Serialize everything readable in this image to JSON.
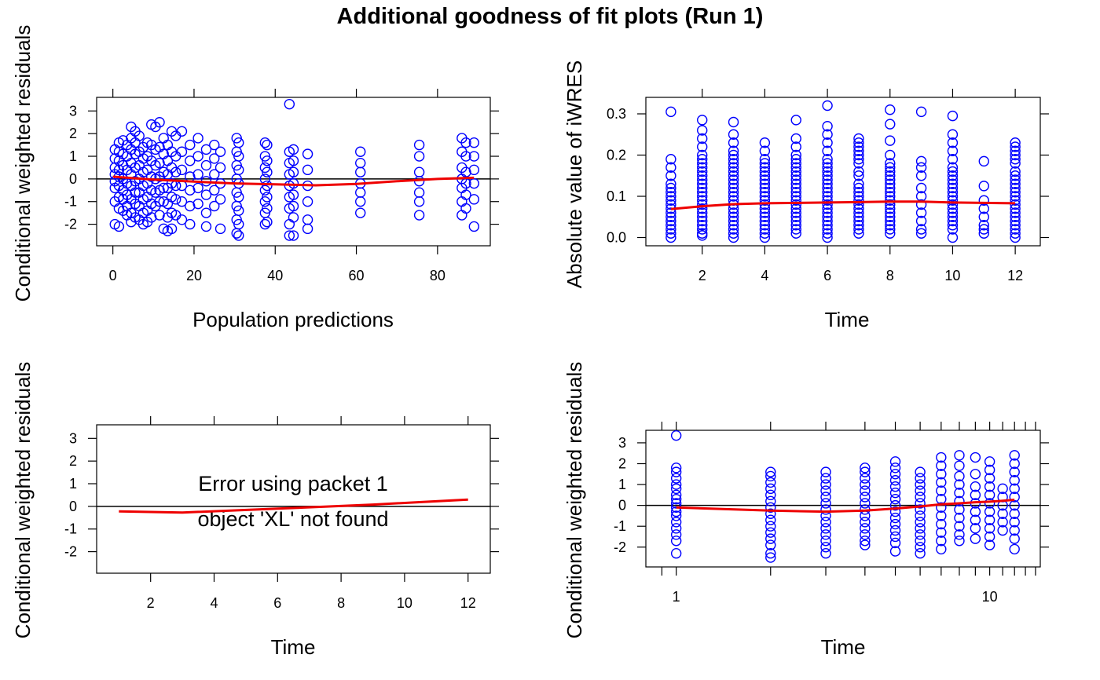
{
  "figure": {
    "title": "Additional goodness of fit plots (Run 1)",
    "colors": {
      "points": "#0000ff",
      "smooth": "#ee0000",
      "reference": "#000000",
      "frame": "#000000",
      "background": "#ffffff"
    }
  },
  "chart_data": [
    {
      "type": "scatter",
      "xlabel": "Population predictions",
      "ylabel": "Conditional weighted residuals",
      "xlim": [
        -4,
        93
      ],
      "ylim": [
        -2.95,
        3.6
      ],
      "xticks": [
        0,
        20,
        40,
        60,
        80
      ],
      "yticks": [
        -2,
        -1,
        0,
        1,
        2,
        3
      ],
      "reference_line_y": 0,
      "x_columns": [
        0.5,
        1.5,
        2.5,
        3.5,
        4.5,
        5.5,
        6.5,
        7.5,
        8.5,
        9.5,
        10.5,
        11.5,
        12.5,
        13.5,
        14.5,
        15.5,
        17,
        19,
        21,
        23,
        25,
        26.5,
        30.5,
        31,
        37.5,
        38,
        43.5,
        44.5,
        48,
        61,
        75.5,
        86,
        87,
        89
      ],
      "column_values": [
        [
          1.3,
          0.9,
          0.5,
          0.2,
          -0.1,
          -0.4,
          -1.0,
          -2.0
        ],
        [
          1.6,
          1.2,
          0.8,
          0.4,
          0.1,
          -0.3,
          -0.8,
          -1.3,
          -2.1
        ],
        [
          1.7,
          1.1,
          0.6,
          0.0,
          -0.5,
          -0.9,
          -1.4
        ],
        [
          1.5,
          1.0,
          0.4,
          -0.2,
          -0.7,
          -1.2,
          -1.6
        ],
        [
          2.3,
          1.8,
          1.3,
          0.7,
          0.2,
          -0.3,
          -0.9,
          -1.5,
          -1.9
        ],
        [
          2.1,
          1.6,
          1.1,
          0.5,
          -0.1,
          -0.6,
          -1.1,
          -1.7
        ],
        [
          1.9,
          1.2,
          0.6,
          0.0,
          -0.6,
          -1.2,
          -1.8
        ],
        [
          1.4,
          0.9,
          0.3,
          -0.3,
          -0.9,
          -1.5,
          -2.0
        ],
        [
          1.6,
          1.0,
          0.4,
          -0.2,
          -0.8,
          -1.4,
          -1.9
        ],
        [
          2.4,
          1.5,
          0.8,
          0.1,
          -0.5,
          -1.1,
          -1.7
        ],
        [
          2.3,
          1.3,
          0.6,
          0.0,
          -0.6,
          -1.2
        ],
        [
          2.5,
          1.4,
          0.7,
          0.1,
          -0.5,
          -1.0,
          -1.6
        ],
        [
          1.8,
          1.1,
          0.3,
          -0.4,
          -1.0,
          -2.2
        ],
        [
          1.5,
          0.8,
          0.2,
          -0.4,
          -1.1,
          -1.7,
          -2.3
        ],
        [
          2.1,
          1.2,
          0.5,
          -0.2,
          -0.8,
          -1.5,
          -2.2
        ],
        [
          1.9,
          1.0,
          0.3,
          -0.3,
          -0.9,
          -1.6
        ],
        [
          2.1,
          1.2,
          0.4,
          -0.3,
          -1.0,
          -1.8
        ],
        [
          1.5,
          0.8,
          0.1,
          -0.5,
          -1.2,
          -2.0
        ],
        [
          1.8,
          1.0,
          0.2,
          -0.4,
          -1.1
        ],
        [
          1.3,
          0.6,
          -0.1,
          -0.7,
          -1.5,
          -2.1
        ],
        [
          1.5,
          0.9,
          0.2,
          -0.5,
          -1.2
        ],
        [
          1.2,
          0.5,
          -0.2,
          -0.9,
          -2.2
        ],
        [
          1.8,
          1.2,
          0.6,
          0.0,
          -0.6,
          -1.2,
          -1.8,
          -2.4
        ],
        [
          1.6,
          1.0,
          0.4,
          -0.2,
          -0.8,
          -1.4,
          -2.0,
          -2.5
        ],
        [
          1.6,
          1.0,
          0.5,
          0.0,
          -0.5,
          -1.0,
          -1.5,
          -2.0
        ],
        [
          1.5,
          0.8,
          0.3,
          -0.3,
          -0.8,
          -1.3,
          -1.9
        ],
        [
          3.3,
          1.2,
          0.7,
          0.2,
          -0.3,
          -0.8,
          -1.3,
          -2.0,
          -2.5
        ],
        [
          1.3,
          0.8,
          0.3,
          -0.2,
          -0.7,
          -1.2,
          -1.7,
          -2.5
        ],
        [
          1.1,
          0.4,
          -0.3,
          -1.0,
          -1.8,
          -2.2
        ],
        [
          1.2,
          0.7,
          0.3,
          -0.2,
          -0.6,
          -1.0,
          -1.5
        ],
        [
          1.5,
          1.0,
          0.3,
          -0.1,
          -0.6,
          -1.0,
          -1.6
        ],
        [
          1.8,
          1.2,
          0.5,
          0.0,
          -0.4,
          -1.0,
          -1.6
        ],
        [
          1.6,
          1.0,
          0.3,
          -0.2,
          -0.7,
          -1.3
        ],
        [
          1.6,
          1.0,
          0.4,
          -0.2,
          -0.9,
          -2.1
        ]
      ],
      "smooth_x": [
        0,
        10,
        20,
        30,
        40,
        50,
        60,
        70,
        80,
        89
      ],
      "smooth_y": [
        0.1,
        -0.03,
        -0.12,
        -0.2,
        -0.24,
        -0.28,
        -0.22,
        -0.1,
        0.0,
        0.05
      ]
    },
    {
      "type": "scatter",
      "xlabel": "Time",
      "ylabel": "Absolute value of iWRES",
      "xlim": [
        0.2,
        12.8
      ],
      "ylim": [
        -0.02,
        0.34
      ],
      "xticks": [
        2,
        4,
        6,
        8,
        10,
        12
      ],
      "yticks": [
        0.0,
        0.1,
        0.2,
        0.3
      ],
      "x_columns": [
        1,
        2,
        3,
        4,
        5,
        6,
        7,
        8,
        9,
        10,
        11,
        12
      ],
      "column_values": [
        [
          0.305,
          0.19,
          0.17,
          0.15,
          0.13,
          0.12,
          0.11,
          0.1,
          0.09,
          0.08,
          0.07,
          0.06,
          0.05,
          0.04,
          0.03,
          0.02,
          0.01,
          0.0
        ],
        [
          0.285,
          0.26,
          0.24,
          0.22,
          0.2,
          0.19,
          0.18,
          0.17,
          0.16,
          0.15,
          0.14,
          0.13,
          0.12,
          0.11,
          0.1,
          0.09,
          0.08,
          0.07,
          0.06,
          0.05,
          0.04,
          0.03,
          0.02,
          0.01,
          0.005
        ],
        [
          0.28,
          0.25,
          0.23,
          0.21,
          0.2,
          0.19,
          0.18,
          0.17,
          0.16,
          0.15,
          0.14,
          0.13,
          0.12,
          0.11,
          0.1,
          0.09,
          0.08,
          0.07,
          0.06,
          0.05,
          0.04,
          0.03,
          0.02,
          0.01,
          0.0
        ],
        [
          0.23,
          0.21,
          0.19,
          0.18,
          0.17,
          0.16,
          0.15,
          0.14,
          0.13,
          0.12,
          0.11,
          0.1,
          0.09,
          0.08,
          0.07,
          0.06,
          0.05,
          0.04,
          0.03,
          0.02,
          0.01,
          0.0
        ],
        [
          0.285,
          0.24,
          0.22,
          0.2,
          0.19,
          0.18,
          0.17,
          0.16,
          0.15,
          0.14,
          0.13,
          0.12,
          0.11,
          0.1,
          0.09,
          0.08,
          0.07,
          0.06,
          0.05,
          0.04,
          0.03,
          0.02,
          0.01
        ],
        [
          0.32,
          0.27,
          0.25,
          0.23,
          0.21,
          0.19,
          0.18,
          0.17,
          0.16,
          0.15,
          0.14,
          0.13,
          0.12,
          0.11,
          0.1,
          0.09,
          0.08,
          0.07,
          0.06,
          0.05,
          0.04,
          0.03,
          0.02,
          0.01,
          0.0
        ],
        [
          0.24,
          0.23,
          0.22,
          0.21,
          0.2,
          0.19,
          0.18,
          0.16,
          0.15,
          0.13,
          0.12,
          0.11,
          0.1,
          0.09,
          0.08,
          0.07,
          0.06,
          0.05,
          0.04,
          0.03,
          0.02,
          0.01
        ],
        [
          0.31,
          0.275,
          0.235,
          0.2,
          0.18,
          0.17,
          0.16,
          0.15,
          0.14,
          0.13,
          0.12,
          0.11,
          0.1,
          0.09,
          0.08,
          0.07,
          0.06,
          0.05,
          0.04,
          0.03,
          0.02,
          0.01
        ],
        [
          0.305,
          0.185,
          0.17,
          0.15,
          0.12,
          0.1,
          0.08,
          0.06,
          0.04,
          0.02,
          0.01
        ],
        [
          0.295,
          0.25,
          0.23,
          0.21,
          0.19,
          0.17,
          0.16,
          0.15,
          0.14,
          0.13,
          0.12,
          0.11,
          0.1,
          0.09,
          0.08,
          0.07,
          0.06,
          0.05,
          0.04,
          0.03,
          0.02,
          0.0
        ],
        [
          0.185,
          0.125,
          0.09,
          0.07,
          0.05,
          0.03,
          0.02,
          0.01
        ],
        [
          0.23,
          0.22,
          0.21,
          0.2,
          0.19,
          0.18,
          0.16,
          0.15,
          0.14,
          0.13,
          0.12,
          0.11,
          0.1,
          0.09,
          0.08,
          0.07,
          0.06,
          0.05,
          0.04,
          0.03,
          0.02,
          0.01,
          0.0
        ]
      ],
      "smooth_x": [
        1,
        2,
        3,
        4,
        5,
        6,
        7,
        8,
        9,
        10,
        11,
        12
      ],
      "smooth_y": [
        0.069,
        0.076,
        0.081,
        0.083,
        0.084,
        0.085,
        0.086,
        0.087,
        0.087,
        0.085,
        0.084,
        0.083
      ]
    },
    {
      "type": "line",
      "xlabel": "Time",
      "ylabel": "Conditional weighted residuals",
      "xlim": [
        0.3,
        12.7
      ],
      "ylim": [
        -2.95,
        3.6
      ],
      "xticks": [
        2,
        4,
        6,
        8,
        10,
        12
      ],
      "yticks": [
        -2,
        -1,
        0,
        1,
        2,
        3
      ],
      "reference_line_y": 0,
      "error_lines": [
        "Error using packet 1",
        "object 'XL' not found"
      ],
      "smooth_x": [
        1,
        3,
        6,
        9,
        12
      ],
      "smooth_y": [
        -0.22,
        -0.27,
        -0.1,
        0.08,
        0.3
      ]
    },
    {
      "type": "scatter",
      "xlabel": "Time",
      "ylabel": "Conditional weighted residuals",
      "xscale": "log",
      "xlim": [
        0.8,
        14.5
      ],
      "ylim": [
        -2.95,
        3.6
      ],
      "xticks": [
        1,
        10
      ],
      "xtick_labels": [
        "1",
        "10"
      ],
      "yticks": [
        -2,
        -1,
        0,
        1,
        2,
        3
      ],
      "reference_line_y": 0,
      "x_columns": [
        1,
        2,
        3,
        4,
        5,
        6,
        7,
        8,
        9,
        10,
        11,
        12
      ],
      "column_values": [
        [
          3.35,
          1.8,
          1.6,
          1.3,
          1.0,
          0.8,
          0.5,
          0.3,
          0.1,
          -0.1,
          -0.3,
          -0.5,
          -0.8,
          -1.1,
          -1.4,
          -1.7,
          -2.3
        ],
        [
          1.6,
          1.4,
          1.1,
          0.8,
          0.5,
          0.2,
          -0.1,
          -0.4,
          -0.7,
          -1.0,
          -1.3,
          -1.6,
          -1.9,
          -2.3,
          -2.5
        ],
        [
          1.6,
          1.3,
          1.0,
          0.7,
          0.4,
          0.1,
          -0.2,
          -0.5,
          -0.8,
          -1.1,
          -1.4,
          -1.7,
          -2.0,
          -2.3
        ],
        [
          1.8,
          1.6,
          1.3,
          1.0,
          0.7,
          0.4,
          0.1,
          -0.2,
          -0.5,
          -0.8,
          -1.1,
          -1.4,
          -1.7,
          -1.9
        ],
        [
          2.1,
          1.8,
          1.5,
          1.2,
          0.9,
          0.6,
          0.3,
          0.0,
          -0.3,
          -0.6,
          -0.9,
          -1.2,
          -1.5,
          -1.8,
          -2.2
        ],
        [
          1.6,
          1.3,
          1.0,
          0.7,
          0.4,
          0.1,
          -0.2,
          -0.5,
          -0.8,
          -1.1,
          -1.4,
          -1.7,
          -2.0,
          -2.3
        ],
        [
          2.3,
          1.9,
          1.5,
          1.1,
          0.7,
          0.3,
          -0.1,
          -0.5,
          -0.9,
          -1.3,
          -1.7,
          -2.1
        ],
        [
          2.4,
          1.9,
          1.4,
          1.0,
          0.6,
          0.2,
          -0.2,
          -0.6,
          -1.0,
          -1.4,
          -1.7
        ],
        [
          2.3,
          1.5,
          0.9,
          0.5,
          0.1,
          -0.3,
          -0.7,
          -1.1,
          -1.6
        ],
        [
          2.1,
          1.7,
          1.3,
          0.9,
          0.5,
          0.1,
          -0.3,
          -0.7,
          -1.1,
          -1.5,
          -1.9
        ],
        [
          0.8,
          0.4,
          0.0,
          -0.4,
          -0.8,
          -1.2
        ],
        [
          2.4,
          2.0,
          1.6,
          1.2,
          0.8,
          0.4,
          0.0,
          -0.4,
          -0.8,
          -1.2,
          -1.6,
          -2.1
        ]
      ],
      "smooth_x": [
        1,
        2,
        3,
        4,
        5,
        6,
        7,
        8,
        9,
        10,
        11,
        12
      ],
      "smooth_y": [
        -0.1,
        -0.25,
        -0.3,
        -0.25,
        -0.15,
        -0.05,
        0.05,
        0.1,
        0.15,
        0.18,
        0.22,
        0.27
      ]
    }
  ]
}
